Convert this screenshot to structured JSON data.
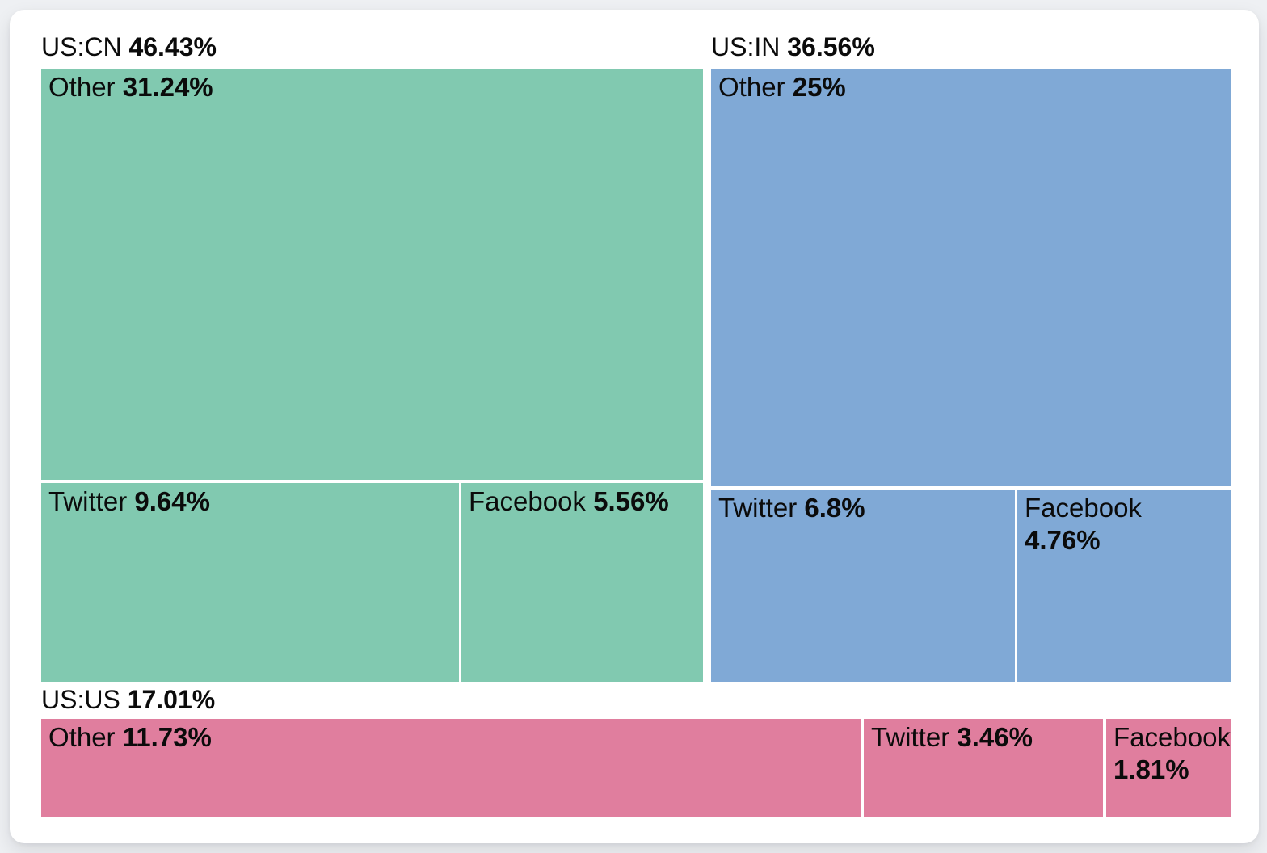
{
  "colors": {
    "page_background": "#eef0f3",
    "card_background": "#ffffff",
    "text": "#0b0b0b",
    "group_us_cn": "#81c9b0",
    "group_us_in": "#80a9d6",
    "group_us_us": "#e07e9e"
  },
  "chart_data": {
    "type": "treemap",
    "title": "",
    "unit": "%",
    "legend": "none",
    "layout_hint": "three groups tiled left-to-right then bottom row; children nested as Other/Twitter/Facebook rectangles sized by percentage",
    "groups": [
      {
        "name": "US:CN",
        "pct": "46.43%",
        "value": 46.43,
        "color": "#81c9b0",
        "children": [
          {
            "name": "Other",
            "pct": "31.24%",
            "value": 31.24
          },
          {
            "name": "Twitter",
            "pct": "9.64%",
            "value": 9.64
          },
          {
            "name": "Facebook",
            "pct": "5.56%",
            "value": 5.56
          }
        ]
      },
      {
        "name": "US:IN",
        "pct": "36.56%",
        "value": 36.56,
        "color": "#80a9d6",
        "children": [
          {
            "name": "Other",
            "pct": "25%",
            "value": 25
          },
          {
            "name": "Twitter",
            "pct": "6.8%",
            "value": 6.8
          },
          {
            "name": "Facebook",
            "pct": "4.76%",
            "value": 4.76
          }
        ]
      },
      {
        "name": "US:US",
        "pct": "17.01%",
        "value": 17.01,
        "color": "#e07e9e",
        "children": [
          {
            "name": "Other",
            "pct": "11.73%",
            "value": 11.73
          },
          {
            "name": "Twitter",
            "pct": "3.46%",
            "value": 3.46
          },
          {
            "name": "Facebook",
            "pct": "1.81%",
            "value": 1.81
          }
        ]
      }
    ]
  }
}
